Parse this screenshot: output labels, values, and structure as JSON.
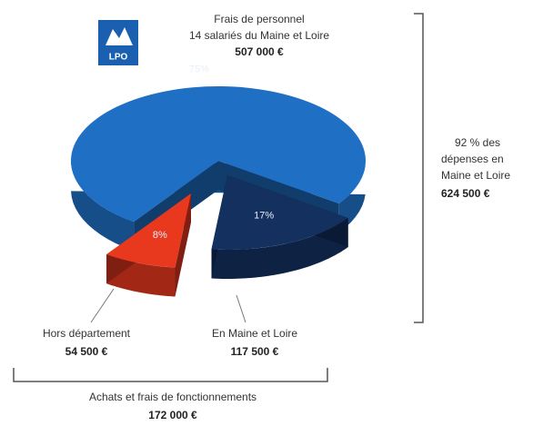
{
  "chart_data": {
    "type": "pie",
    "logo": "LPO",
    "categories": [
      "Frais de personnel",
      "En Maine et Loire",
      "Hors département"
    ],
    "personnel_note": "14 salariés du Maine et Loire",
    "amounts": [
      "507 000 €",
      "117 500 €",
      "54 500 €"
    ],
    "values": [
      75,
      17,
      8
    ],
    "value_labels": [
      "75%",
      "17%",
      "8%"
    ],
    "colors": [
      "#1f6fc4",
      "#14305f",
      "#e8391e"
    ],
    "brackets": [
      {
        "lines": [
          "92 % des",
          "dépenses en",
          "Maine et Loire"
        ],
        "amount": "624 500 €"
      },
      {
        "lines": [
          "Achats et frais de fonctionnements"
        ],
        "amount": "172 000 €"
      }
    ]
  }
}
